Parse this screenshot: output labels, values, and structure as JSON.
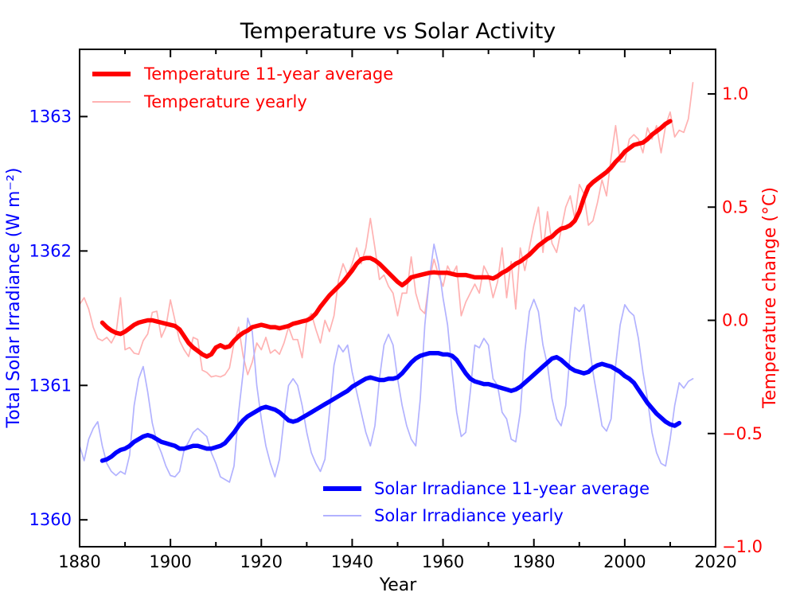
{
  "chart_data": {
    "type": "line",
    "title": "Temperature vs Solar Activity",
    "xlabel": "Year",
    "ylabel_left": "Total Solar Irradiance (W m⁻²)",
    "ylabel_right": "Temperature change (°C)",
    "xlim": [
      1880,
      2020
    ],
    "ylim_left": [
      1359.8,
      1363.5
    ],
    "ylim_right": [
      -1.0,
      1.197
    ],
    "grid": false,
    "x_major_ticks": [
      1880,
      1900,
      1920,
      1940,
      1960,
      1980,
      2000,
      2020
    ],
    "x_minor_ticks": [
      1890,
      1910,
      1930,
      1950,
      1970,
      1990,
      2010
    ],
    "left_ticks": [
      1360,
      1361,
      1362,
      1363
    ],
    "right_ticks": [
      -1.0,
      -0.5,
      0.0,
      0.5,
      1.0
    ],
    "colors": {
      "temperature_avg": "#ff0000",
      "temperature_yearly": "#ffb2b2",
      "solar_avg": "#0000ff",
      "solar_yearly": "#b2b2ff",
      "frame": "#000000",
      "background": "#ffffff"
    },
    "legend": {
      "temperature": [
        {
          "label": "Temperature 11-year average",
          "style": "thick"
        },
        {
          "label": "Temperature yearly",
          "style": "thin"
        }
      ],
      "solar": [
        {
          "label": "Solar Irradiance 11-year average",
          "style": "thick"
        },
        {
          "label": "Solar Irradiance yearly",
          "style": "thin"
        }
      ]
    },
    "series": [
      {
        "name": "Temperature yearly",
        "axis": "right",
        "color": "#ffb2b2",
        "width": 1.7,
        "start_year": 1880,
        "values": [
          0.07,
          0.1,
          0.05,
          -0.03,
          -0.08,
          -0.09,
          -0.075,
          -0.1,
          -0.06,
          0.1,
          -0.13,
          -0.12,
          -0.145,
          -0.15,
          -0.09,
          -0.06,
          0.035,
          0.04,
          -0.075,
          -0.03,
          0.09,
          0.0,
          -0.09,
          -0.13,
          -0.16,
          -0.075,
          -0.085,
          -0.22,
          -0.23,
          -0.25,
          -0.245,
          -0.25,
          -0.24,
          -0.21,
          -0.1,
          -0.03,
          -0.158,
          -0.24,
          -0.185,
          -0.1,
          -0.13,
          -0.075,
          -0.145,
          -0.13,
          -0.15,
          -0.1,
          -0.03,
          -0.085,
          -0.085,
          -0.165,
          0.0,
          0.03,
          -0.04,
          -0.1,
          0.0,
          -0.05,
          0.02,
          0.18,
          0.25,
          0.2,
          0.25,
          0.32,
          0.25,
          0.32,
          0.45,
          0.32,
          0.18,
          0.2,
          0.15,
          0.12,
          0.02,
          0.12,
          0.12,
          0.28,
          0.12,
          0.05,
          0.03,
          0.18,
          0.27,
          0.2,
          0.15,
          0.24,
          0.2,
          0.24,
          0.02,
          0.08,
          0.12,
          0.16,
          0.12,
          0.24,
          0.2,
          0.1,
          0.17,
          0.32,
          0.1,
          0.26,
          0.05,
          0.32,
          0.22,
          0.32,
          0.42,
          0.5,
          0.3,
          0.48,
          0.34,
          0.3,
          0.4,
          0.5,
          0.55,
          0.45,
          0.6,
          0.56,
          0.42,
          0.44,
          0.52,
          0.62,
          0.55,
          0.72,
          0.86,
          0.7,
          0.7,
          0.8,
          0.82,
          0.8,
          0.74,
          0.85,
          0.8,
          0.86,
          0.74,
          0.86,
          0.92,
          0.81,
          0.84,
          0.83,
          0.89,
          1.05
        ]
      },
      {
        "name": "Solar Irradiance yearly",
        "axis": "left",
        "color": "#b2b2ff",
        "width": 1.7,
        "start_year": 1880,
        "values": [
          1360.55,
          1360.44,
          1360.6,
          1360.68,
          1360.73,
          1360.55,
          1360.42,
          1360.36,
          1360.33,
          1360.36,
          1360.34,
          1360.48,
          1360.85,
          1361.05,
          1361.14,
          1360.95,
          1360.72,
          1360.58,
          1360.5,
          1360.4,
          1360.33,
          1360.32,
          1360.36,
          1360.52,
          1360.58,
          1360.65,
          1360.68,
          1360.65,
          1360.62,
          1360.5,
          1360.42,
          1360.32,
          1360.3,
          1360.28,
          1360.4,
          1360.8,
          1361.1,
          1361.5,
          1361.4,
          1361.0,
          1360.75,
          1360.55,
          1360.42,
          1360.32,
          1360.45,
          1360.75,
          1361.0,
          1361.05,
          1361.0,
          1360.85,
          1360.65,
          1360.5,
          1360.42,
          1360.36,
          1360.45,
          1360.8,
          1361.15,
          1361.3,
          1361.25,
          1361.3,
          1361.1,
          1360.95,
          1360.8,
          1360.65,
          1360.55,
          1360.7,
          1361.05,
          1361.3,
          1361.38,
          1361.3,
          1361.05,
          1360.85,
          1360.7,
          1360.6,
          1360.55,
          1360.9,
          1361.45,
          1361.8,
          1362.05,
          1361.9,
          1361.65,
          1361.45,
          1361.1,
          1360.8,
          1360.62,
          1360.65,
          1360.95,
          1361.3,
          1361.28,
          1361.35,
          1361.3,
          1361.05,
          1361.0,
          1360.8,
          1360.75,
          1360.6,
          1360.58,
          1360.8,
          1361.25,
          1361.55,
          1361.64,
          1361.55,
          1361.3,
          1361.15,
          1360.9,
          1360.75,
          1360.7,
          1360.85,
          1361.25,
          1361.58,
          1361.55,
          1361.6,
          1361.35,
          1361.1,
          1360.9,
          1360.7,
          1360.66,
          1360.75,
          1361.15,
          1361.45,
          1361.6,
          1361.55,
          1361.52,
          1361.35,
          1361.1,
          1360.9,
          1360.65,
          1360.5,
          1360.42,
          1360.4,
          1360.6,
          1360.85,
          1361.02,
          1360.98,
          1361.03,
          1361.05
        ]
      },
      {
        "name": "Temperature 11-year average",
        "axis": "right",
        "color": "#ff0000",
        "width": 5.5,
        "start_year": 1885,
        "values": [
          -0.01,
          -0.03,
          -0.045,
          -0.055,
          -0.06,
          -0.05,
          -0.035,
          -0.02,
          -0.01,
          -0.005,
          0.0,
          0.0,
          -0.005,
          -0.01,
          -0.015,
          -0.02,
          -0.025,
          -0.04,
          -0.07,
          -0.1,
          -0.12,
          -0.135,
          -0.15,
          -0.16,
          -0.15,
          -0.12,
          -0.11,
          -0.12,
          -0.115,
          -0.09,
          -0.07,
          -0.055,
          -0.045,
          -0.03,
          -0.025,
          -0.02,
          -0.025,
          -0.03,
          -0.03,
          -0.035,
          -0.03,
          -0.025,
          -0.015,
          -0.01,
          -0.005,
          0.0,
          0.01,
          0.03,
          0.06,
          0.085,
          0.11,
          0.13,
          0.15,
          0.17,
          0.195,
          0.22,
          0.25,
          0.27,
          0.275,
          0.275,
          0.265,
          0.25,
          0.23,
          0.21,
          0.19,
          0.17,
          0.155,
          0.17,
          0.19,
          0.195,
          0.2,
          0.205,
          0.21,
          0.212,
          0.21,
          0.21,
          0.21,
          0.205,
          0.2,
          0.2,
          0.2,
          0.195,
          0.19,
          0.19,
          0.19,
          0.19,
          0.185,
          0.195,
          0.21,
          0.22,
          0.235,
          0.25,
          0.26,
          0.275,
          0.29,
          0.31,
          0.33,
          0.345,
          0.36,
          0.37,
          0.39,
          0.405,
          0.41,
          0.42,
          0.44,
          0.48,
          0.54,
          0.59,
          0.61,
          0.625,
          0.64,
          0.655,
          0.675,
          0.7,
          0.72,
          0.745,
          0.76,
          0.775,
          0.78,
          0.785,
          0.8,
          0.82,
          0.835,
          0.85,
          0.868,
          0.88
        ]
      },
      {
        "name": "Solar Irradiance 11-year average",
        "axis": "left",
        "color": "#0000ff",
        "width": 5.5,
        "start_year": 1885,
        "values": [
          1360.44,
          1360.45,
          1360.47,
          1360.5,
          1360.52,
          1360.53,
          1360.55,
          1360.58,
          1360.6,
          1360.62,
          1360.63,
          1360.62,
          1360.6,
          1360.58,
          1360.57,
          1360.56,
          1360.55,
          1360.53,
          1360.53,
          1360.54,
          1360.55,
          1360.55,
          1360.54,
          1360.53,
          1360.53,
          1360.54,
          1360.55,
          1360.57,
          1360.61,
          1360.65,
          1360.7,
          1360.74,
          1360.77,
          1360.79,
          1360.81,
          1360.83,
          1360.84,
          1360.83,
          1360.82,
          1360.8,
          1360.77,
          1360.74,
          1360.73,
          1360.74,
          1360.76,
          1360.78,
          1360.8,
          1360.82,
          1360.84,
          1360.86,
          1360.88,
          1360.9,
          1360.92,
          1360.94,
          1360.96,
          1360.99,
          1361.01,
          1361.03,
          1361.05,
          1361.06,
          1361.05,
          1361.04,
          1361.04,
          1361.05,
          1361.05,
          1361.06,
          1361.09,
          1361.13,
          1361.17,
          1361.2,
          1361.22,
          1361.23,
          1361.24,
          1361.24,
          1361.24,
          1361.23,
          1361.23,
          1361.22,
          1361.19,
          1361.14,
          1361.09,
          1361.05,
          1361.03,
          1361.02,
          1361.01,
          1361.01,
          1361.0,
          1360.99,
          1360.98,
          1360.97,
          1360.96,
          1360.97,
          1360.99,
          1361.02,
          1361.05,
          1361.08,
          1361.11,
          1361.14,
          1361.17,
          1361.2,
          1361.21,
          1361.19,
          1361.16,
          1361.13,
          1361.11,
          1361.1,
          1361.09,
          1361.1,
          1361.13,
          1361.15,
          1361.16,
          1361.15,
          1361.14,
          1361.12,
          1361.1,
          1361.07,
          1361.05,
          1361.02,
          1360.97,
          1360.92,
          1360.87,
          1360.83,
          1360.79,
          1360.76,
          1360.73,
          1360.71,
          1360.7,
          1360.72
        ]
      }
    ]
  }
}
